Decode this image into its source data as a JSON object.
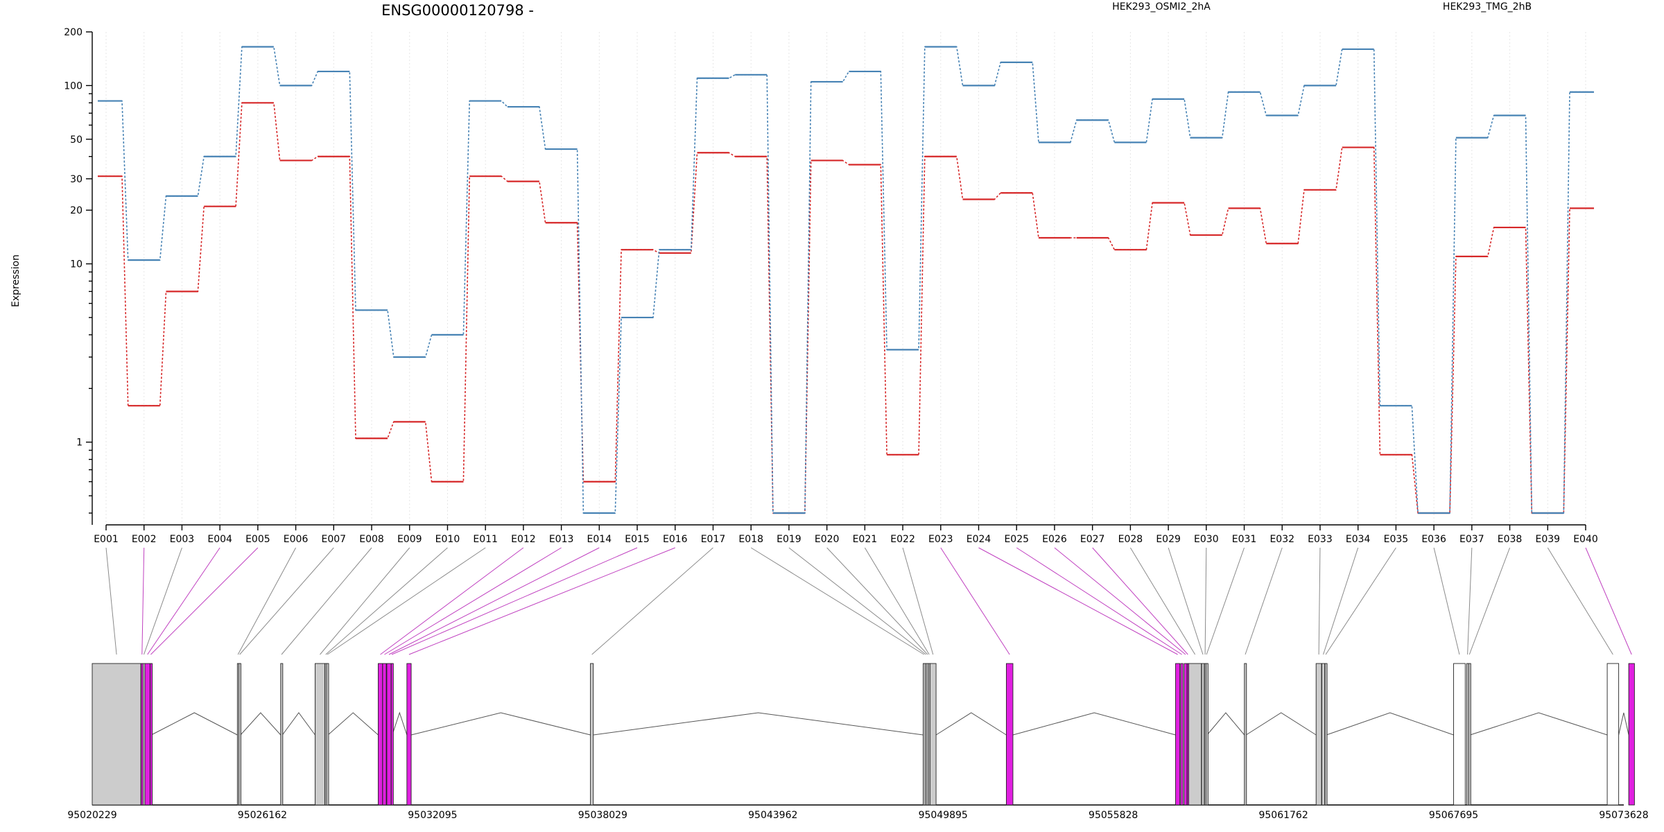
{
  "chart_data": {
    "type": "line",
    "title": "ENSG00000120798 -",
    "ylabel": "Expression",
    "yscale": "log",
    "ylim": [
      0.4,
      200
    ],
    "yticks": [
      {
        "value": 1,
        "label": "1"
      },
      {
        "value": 10,
        "label": "10"
      },
      {
        "value": 20,
        "label": "20"
      },
      {
        "value": 30,
        "label": "30"
      },
      {
        "value": 50,
        "label": "50"
      },
      {
        "value": 100,
        "label": "100"
      },
      {
        "value": 200,
        "label": "200"
      }
    ],
    "categories": [
      "E001",
      "E002",
      "E003",
      "E004",
      "E005",
      "E006",
      "E007",
      "E008",
      "E009",
      "E010",
      "E011",
      "E012",
      "E013",
      "E014",
      "E015",
      "E016",
      "E017",
      "E018",
      "E019",
      "E020",
      "E021",
      "E022",
      "E023",
      "E024",
      "E025",
      "E026",
      "E027",
      "E028",
      "E029",
      "E030",
      "E031",
      "E032",
      "E033",
      "E034",
      "E035",
      "E036",
      "E037",
      "E038",
      "E039",
      "E040"
    ],
    "series": [
      {
        "name": "HEK293_OSMI2_2hA",
        "color": "#d62728",
        "values": [
          31,
          1.6,
          7,
          21,
          80,
          38,
          40,
          1.05,
          1.3,
          0.6,
          31,
          29,
          17,
          0.6,
          12,
          11.5,
          42,
          40,
          0.4,
          38,
          36,
          0.85,
          40,
          23,
          25,
          14,
          14,
          12,
          22,
          14.5,
          20.5,
          13,
          26,
          45,
          0.85,
          0.4,
          11,
          16,
          0.4,
          20.5
        ]
      },
      {
        "name": "HEK293_TMG_2hB",
        "color": "#4682b4",
        "values": [
          82,
          10.5,
          24,
          40,
          165,
          100,
          120,
          5.5,
          3,
          4,
          82,
          76,
          44,
          0.4,
          5,
          12,
          110,
          115,
          0.4,
          105,
          120,
          3.3,
          165,
          100,
          135,
          48,
          64,
          48,
          84,
          51,
          92,
          68,
          100,
          160,
          1.6,
          0.4,
          51,
          68,
          0.4,
          92
        ]
      }
    ],
    "legend_placement": "top",
    "grid": true,
    "gene_model": {
      "coordinate_labels": [
        "95020229",
        "95026162",
        "95032095",
        "95038029",
        "95043962",
        "95049895",
        "95055828",
        "95061762",
        "95067695",
        "95073628"
      ],
      "coordinate_range": [
        95020229,
        95073628
      ],
      "exon_colors": {
        "plain": "#cccccc",
        "highlight": "#e020e0",
        "untested": "#ffffff"
      },
      "exons": [
        {
          "id": "E001",
          "start": 95020229,
          "end": 95021925,
          "type": "plain"
        },
        {
          "id": "E002",
          "start": 95021935,
          "end": 95021995,
          "type": "highlight"
        },
        {
          "id": "E003",
          "start": 95022000,
          "end": 95022060,
          "type": "plain"
        },
        {
          "id": "E004",
          "start": 95022065,
          "end": 95022245,
          "type": "highlight"
        },
        {
          "id": "E005",
          "start": 95022250,
          "end": 95022290,
          "type": "highlight"
        },
        {
          "id": "E006",
          "start": 95025290,
          "end": 95025330,
          "type": "plain"
        },
        {
          "id": "E007",
          "start": 95025340,
          "end": 95025400,
          "type": "plain"
        },
        {
          "id": "E008",
          "start": 95026800,
          "end": 95026860,
          "type": "plain"
        },
        {
          "id": "E009",
          "start": 95028000,
          "end": 95028340,
          "type": "plain"
        },
        {
          "id": "E010",
          "start": 95028345,
          "end": 95028395,
          "type": "plain"
        },
        {
          "id": "E011",
          "start": 95028400,
          "end": 95028450,
          "type": "plain"
        },
        {
          "id": "E012",
          "start": 95030200,
          "end": 95030350,
          "type": "highlight"
        },
        {
          "id": "E013",
          "start": 95030355,
          "end": 95030480,
          "type": "highlight"
        },
        {
          "id": "E014",
          "start": 95030500,
          "end": 95030650,
          "type": "highlight"
        },
        {
          "id": "E015",
          "start": 95030655,
          "end": 95030690,
          "type": "highlight"
        },
        {
          "id": "E016",
          "start": 95031200,
          "end": 95031350,
          "type": "highlight"
        },
        {
          "id": "E017",
          "start": 95037600,
          "end": 95037700,
          "type": "plain"
        },
        {
          "id": "E018",
          "start": 95049200,
          "end": 95049260,
          "type": "plain"
        },
        {
          "id": "E019",
          "start": 95049270,
          "end": 95049320,
          "type": "plain"
        },
        {
          "id": "E020",
          "start": 95049330,
          "end": 95049380,
          "type": "plain"
        },
        {
          "id": "E021",
          "start": 95049390,
          "end": 95049430,
          "type": "plain"
        },
        {
          "id": "E022",
          "start": 95049440,
          "end": 95049650,
          "type": "plain"
        },
        {
          "id": "E023",
          "start": 95052100,
          "end": 95052330,
          "type": "highlight"
        },
        {
          "id": "E024",
          "start": 95058000,
          "end": 95058150,
          "type": "highlight"
        },
        {
          "id": "E025",
          "start": 95058180,
          "end": 95058260,
          "type": "highlight"
        },
        {
          "id": "E026",
          "start": 95058300,
          "end": 95058400,
          "type": "highlight"
        },
        {
          "id": "E027",
          "start": 95058410,
          "end": 95058450,
          "type": "highlight"
        },
        {
          "id": "E028",
          "start": 95058460,
          "end": 95058900,
          "type": "plain"
        },
        {
          "id": "E029",
          "start": 95058910,
          "end": 95059000,
          "type": "plain"
        },
        {
          "id": "E030",
          "start": 95059010,
          "end": 95059050,
          "type": "plain"
        },
        {
          "id": "E031",
          "start": 95059060,
          "end": 95059100,
          "type": "plain"
        },
        {
          "id": "E032",
          "start": 95060400,
          "end": 95060460,
          "type": "plain"
        },
        {
          "id": "E033",
          "start": 95062900,
          "end": 95063090,
          "type": "plain"
        },
        {
          "id": "E034",
          "start": 95063100,
          "end": 95063200,
          "type": "plain"
        },
        {
          "id": "E035",
          "start": 95063210,
          "end": 95063260,
          "type": "plain"
        },
        {
          "id": "E036",
          "start": 95067695,
          "end": 95068100,
          "type": "untested"
        },
        {
          "id": "E037",
          "start": 95068150,
          "end": 95068210,
          "type": "plain"
        },
        {
          "id": "E038",
          "start": 95068220,
          "end": 95068270,
          "type": "plain"
        },
        {
          "id": "E039",
          "start": 95073050,
          "end": 95073450,
          "type": "untested"
        },
        {
          "id": "E040",
          "start": 95073800,
          "end": 95074000,
          "type": "highlight"
        }
      ]
    }
  }
}
